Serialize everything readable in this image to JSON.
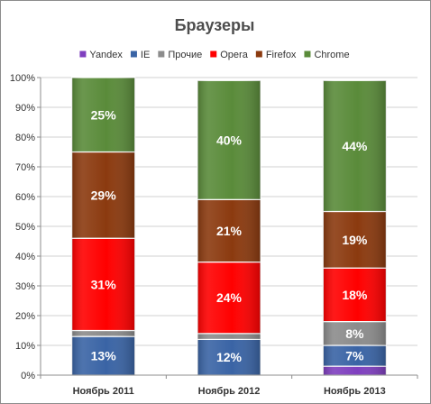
{
  "chart_data": {
    "type": "bar",
    "stacked": "percent",
    "title": "Браузеры",
    "xlabel": "",
    "ylabel": "",
    "ylim": [
      0,
      100
    ],
    "y_ticks": [
      "0%",
      "10%",
      "20%",
      "30%",
      "40%",
      "50%",
      "60%",
      "70%",
      "80%",
      "90%",
      "100%"
    ],
    "grid": true,
    "legend_position": "top",
    "categories": [
      "Ноябрь 2011",
      "Ноябрь 2012",
      "Ноябрь 2013"
    ],
    "series": [
      {
        "name": "Yandex",
        "color": "#7f3fbf",
        "values": [
          0,
          0,
          3
        ],
        "labels": [
          "",
          "",
          ""
        ]
      },
      {
        "name": "IE",
        "color": "#3a64a5",
        "values": [
          13,
          12,
          7
        ],
        "labels": [
          "13%",
          "12%",
          "7%"
        ]
      },
      {
        "name": "Прочие",
        "color": "#8c8c8c",
        "values": [
          2,
          2,
          8
        ],
        "labels": [
          "",
          "",
          "8%"
        ]
      },
      {
        "name": "Opera",
        "color": "#ff0000",
        "values": [
          31,
          24,
          18
        ],
        "labels": [
          "31%",
          "24%",
          "18%"
        ]
      },
      {
        "name": "Firefox",
        "color": "#8b3a0f",
        "values": [
          29,
          21,
          19
        ],
        "labels": [
          "29%",
          "21%",
          "19%"
        ]
      },
      {
        "name": "Chrome",
        "color": "#5a8b3a",
        "values": [
          25,
          40,
          44
        ],
        "labels": [
          "25%",
          "40%",
          "44%"
        ]
      }
    ]
  }
}
